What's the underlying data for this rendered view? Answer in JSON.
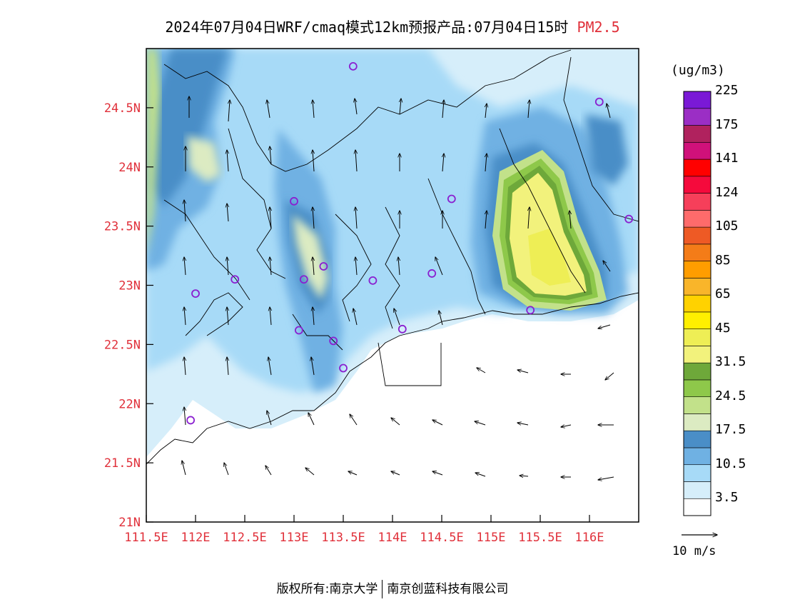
{
  "title": {
    "main": "2024年07月04日WRF/cmaq模式12km预报产品:07月04日15时",
    "pollutant": "PM2.5"
  },
  "map": {
    "lat_labels": [
      "24.5N",
      "24N",
      "23.5N",
      "23N",
      "22.5N",
      "22N",
      "21.5N",
      "21N"
    ],
    "lat_values": [
      24.5,
      24,
      23.5,
      23,
      22.5,
      22,
      21.5,
      21
    ],
    "lon_labels": [
      "111.5E",
      "112E",
      "112.5E",
      "113E",
      "113.5E",
      "114E",
      "114.5E",
      "115E",
      "115.5E",
      "116E"
    ],
    "lon_values": [
      111.5,
      112,
      112.5,
      113,
      113.5,
      114,
      114.5,
      115,
      115.5,
      116
    ],
    "lon_range": [
      111.5,
      116.5
    ],
    "lat_range": [
      21.0,
      25.0
    ],
    "stations": [
      {
        "lon": 113.6,
        "lat": 24.85
      },
      {
        "lon": 116.1,
        "lat": 24.55
      },
      {
        "lon": 114.6,
        "lat": 23.73
      },
      {
        "lon": 113.0,
        "lat": 23.71
      },
      {
        "lon": 116.4,
        "lat": 23.56
      },
      {
        "lon": 113.3,
        "lat": 23.16
      },
      {
        "lon": 114.4,
        "lat": 23.1
      },
      {
        "lon": 112.4,
        "lat": 23.05
      },
      {
        "lon": 113.1,
        "lat": 23.05
      },
      {
        "lon": 113.8,
        "lat": 23.04
      },
      {
        "lon": 112.0,
        "lat": 22.93
      },
      {
        "lon": 115.4,
        "lat": 22.79
      },
      {
        "lon": 113.05,
        "lat": 22.62
      },
      {
        "lon": 114.1,
        "lat": 22.63
      },
      {
        "lon": 113.4,
        "lat": 22.53
      },
      {
        "lon": 113.5,
        "lat": 22.3
      },
      {
        "lon": 111.95,
        "lat": 21.86
      }
    ],
    "station_color": "#8a1fd0"
  },
  "colorbar": {
    "unit": "(ug/m3)",
    "labels": [
      "3.5",
      "10.5",
      "17.5",
      "24.5",
      "31.5",
      "45",
      "65",
      "85",
      "105",
      "124",
      "141",
      "175",
      "225"
    ],
    "colors": [
      "#ffffff",
      "#d6eefa",
      "#a7daf7",
      "#6fb1e3",
      "#4a8ec7",
      "#dcebc2",
      "#c2e18a",
      "#8ec84a",
      "#6ea83a",
      "#f2f27c",
      "#eeee55",
      "#ffef00",
      "#ffd200",
      "#f9b52a",
      "#ff9d00",
      "#f47c18",
      "#ee5a25",
      "#fe6b6b",
      "#f63f5a",
      "#f50a3c",
      "#ff0000",
      "#d0117a",
      "#b0225e",
      "#9b2ec5",
      "#7a19d6"
    ]
  },
  "wind_reference": {
    "text": "10 m/s"
  },
  "footer": {
    "left": "版权所有:南京大学",
    "right": "南京创蓝科技有限公司"
  }
}
